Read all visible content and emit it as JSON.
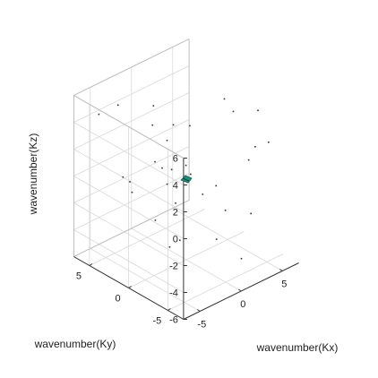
{
  "chart_data": {
    "type": "scatter",
    "projection": "3d",
    "title": "",
    "xlabel": "wavenumber(Kx)",
    "ylabel": "wavenumber(Ky)",
    "zlabel": "wavenumber(Kz)",
    "xlim": [
      -7,
      7
    ],
    "ylim": [
      -7,
      7
    ],
    "zlim": [
      -6,
      6
    ],
    "xticks": [
      -5,
      0,
      5
    ],
    "yticks": [
      -5,
      0,
      5
    ],
    "zticks": [
      -6,
      -4,
      -2,
      0,
      2,
      4,
      6
    ],
    "grid": true,
    "colors": {
      "points": "#333333",
      "cluster": "#1f8f7a",
      "grid": "#d9d9d9",
      "box": "#b8b8b8",
      "axis": "#333333"
    },
    "cluster": {
      "x": 0,
      "y": 0,
      "z": 0
    },
    "points": [
      {
        "x": -4.9,
        "y": 6.0,
        "z": 4.3
      },
      {
        "x": 1.9,
        "y": -4.0,
        "z": 5.8
      },
      {
        "x": -2.3,
        "y": 6.3,
        "z": 4.1
      },
      {
        "x": -1.9,
        "y": 2.2,
        "z": 5.3
      },
      {
        "x": 4.9,
        "y": 0.3,
        "z": 4.4
      },
      {
        "x": 4.7,
        "y": -4.2,
        "z": 5.1
      },
      {
        "x": 1.5,
        "y": 5.9,
        "z": 1.6
      },
      {
        "x": 3.6,
        "y": -5.0,
        "z": 3.0
      },
      {
        "x": 0.9,
        "y": 2.6,
        "z": 2.9
      },
      {
        "x": 5.6,
        "y": -4.6,
        "z": 2.6
      },
      {
        "x": -1.6,
        "y": 6.4,
        "z": -1.5
      },
      {
        "x": 2.7,
        "y": 5.3,
        "z": 0.3
      },
      {
        "x": -2.0,
        "y": 5.1,
        "z": -1.3
      },
      {
        "x": 0.1,
        "y": 4.1,
        "z": -0.1
      },
      {
        "x": 0.3,
        "y": 3.4,
        "z": -0.4
      },
      {
        "x": 0.6,
        "y": 2.5,
        "z": -0.3
      },
      {
        "x": 1.1,
        "y": 1.2,
        "z": 0.3
      },
      {
        "x": 5.2,
        "y": -2.5,
        "z": 0.7
      },
      {
        "x": 1.1,
        "y": 3.6,
        "z": -1.9
      },
      {
        "x": -0.6,
        "y": 6.3,
        "z": -2.9
      },
      {
        "x": 3.8,
        "y": 1.9,
        "z": -2.9
      },
      {
        "x": 3.6,
        "y": -1.2,
        "z": -3.0
      },
      {
        "x": 5.8,
        "y": 2.3,
        "z": -3.0
      },
      {
        "x": -0.4,
        "y": 1.7,
        "z": -5.5
      },
      {
        "x": 1.1,
        "y": -2.7,
        "z": -3.9
      },
      {
        "x": 2.9,
        "y": -5.2,
        "z": -1.7
      },
      {
        "x": 0.8,
        "y": 4.8,
        "z": -4.9
      },
      {
        "x": 1.5,
        "y": 2.4,
        "z": -5.8
      },
      {
        "x": 2.5,
        "y": -4.4,
        "z": -5.2
      },
      {
        "x": -1.3,
        "y": 0.0,
        "z": -1.4
      },
      {
        "x": -1.0,
        "y": -1.6,
        "z": 1.2
      },
      {
        "x": 2.8,
        "y": 2.5,
        "z": 2.3
      }
    ]
  }
}
